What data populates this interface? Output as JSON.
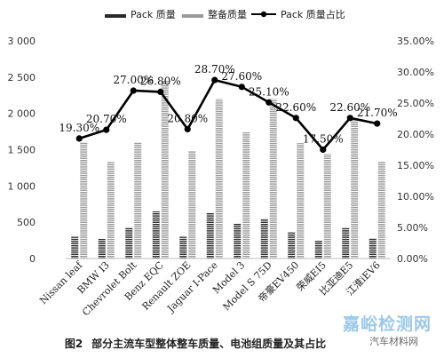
{
  "caption": {
    "figure": "图2",
    "text": "部分主流车型整体整车质量、电池组质量及其占比"
  },
  "watermarks": {
    "main": "嘉峪检测网",
    "sub": "汽车材料网"
  },
  "chart_data": {
    "type": "bar",
    "categories": [
      "Nissan leaf",
      "BMW I3",
      "Chevrolet Bolt",
      "Benz EQC",
      "Renault ZOE",
      "Jaguar I-Pace",
      "Model 3",
      "Model S 75D",
      "帝豪EV450",
      "荣威EI5",
      "比亚迪E5",
      "江淮iEV6"
    ],
    "series": [
      {
        "name": "Pack 质量",
        "type": "bar",
        "axis": "left",
        "color": "#2a2a2a",
        "values": [
          300,
          270,
          430,
          650,
          300,
          630,
          480,
          550,
          360,
          250,
          430,
          280
        ]
      },
      {
        "name": "整备质量",
        "type": "bar",
        "axis": "left",
        "color": "#9a9a9a",
        "values": [
          1600,
          1340,
          1600,
          2450,
          1480,
          2200,
          1740,
          2200,
          1590,
          1440,
          1910,
          1340
        ]
      },
      {
        "name": "Pack 质量占比",
        "type": "line",
        "axis": "right",
        "color": "#000000",
        "values": [
          19.3,
          20.7,
          27.0,
          26.8,
          20.8,
          28.7,
          27.6,
          25.1,
          22.6,
          17.5,
          22.6,
          21.7
        ],
        "data_labels": [
          "19.30%",
          "20.70%",
          "27.00%",
          "26.80%",
          "20.80%",
          "28.70%",
          "27.60%",
          "25.10%",
          "22.60%",
          "17.50%",
          "22.60%",
          "21.70%"
        ]
      }
    ],
    "y_left": {
      "range": [
        0,
        3000
      ],
      "ticks": [
        "0",
        "500",
        "1 000",
        "1 500",
        "2 000",
        "2 500",
        "3 000"
      ]
    },
    "y_right": {
      "range": [
        0,
        35
      ],
      "ticks": [
        "0.00%",
        "5.00%",
        "10.00%",
        "15.00%",
        "20.00%",
        "25.00%",
        "30.00%",
        "35.00%"
      ]
    },
    "legend": {
      "position": "top"
    },
    "grid": false
  }
}
